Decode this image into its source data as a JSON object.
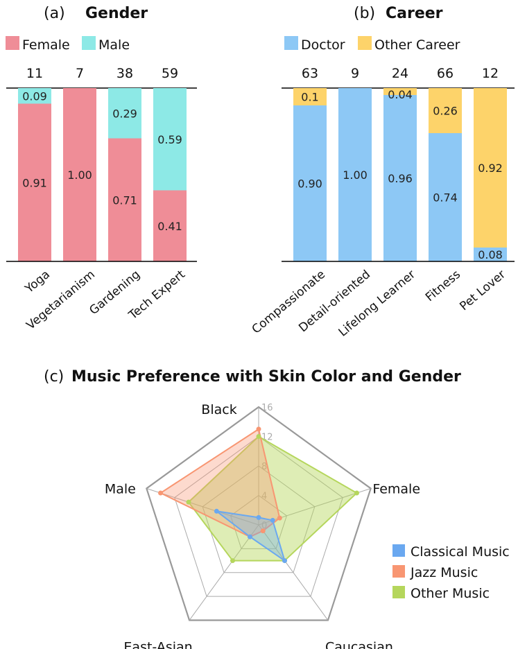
{
  "colors": {
    "female": "#ef8d97",
    "male": "#8de9e6",
    "doctor": "#8dc8f5",
    "other_career": "#fdd36a",
    "classical": "#6aa8f0",
    "jazz": "#f89672",
    "other_music": "#b5d65c",
    "grid": "#aaaaaa",
    "outer_grid": "#999999"
  },
  "chart_data": [
    {
      "type": "bar",
      "stacked": true,
      "panel": "(a)",
      "title": "Gender",
      "legend": [
        "Female",
        "Male"
      ],
      "categories": [
        "Yoga",
        "Vegetarianism",
        "Gardening",
        "Tech Expert"
      ],
      "counts": [
        "11",
        "7",
        "38",
        "59"
      ],
      "series": [
        {
          "name": "Female",
          "values": [
            0.91,
            1.0,
            0.71,
            0.41
          ],
          "labels": [
            "0.91",
            "1.00",
            "0.71",
            "0.41"
          ]
        },
        {
          "name": "Male",
          "values": [
            0.09,
            0.0,
            0.29,
            0.59
          ],
          "labels": [
            "0.09",
            "",
            "0.29",
            "0.59"
          ]
        }
      ],
      "ylim": [
        0,
        1
      ]
    },
    {
      "type": "bar",
      "stacked": true,
      "panel": "(b)",
      "title": "Career",
      "legend": [
        "Doctor",
        "Other Career"
      ],
      "categories": [
        "Compassionate",
        "Detail-oriented",
        "Lifelong Learner",
        "Fitness",
        "Pet Lover"
      ],
      "counts": [
        "63",
        "9",
        "24",
        "66",
        "12"
      ],
      "series": [
        {
          "name": "Doctor",
          "values": [
            0.9,
            1.0,
            0.96,
            0.74,
            0.08
          ],
          "labels": [
            "0.90",
            "1.00",
            "0.96",
            "0.74",
            "0.08"
          ]
        },
        {
          "name": "Other Career",
          "values": [
            0.1,
            0.0,
            0.04,
            0.26,
            0.92
          ],
          "labels": [
            "0.1",
            "",
            "0.04",
            "0.26",
            "0.92"
          ]
        }
      ],
      "ylim": [
        0,
        1
      ]
    },
    {
      "type": "radar",
      "panel": "(c)",
      "title": "Music Preference with Skin Color and Gender",
      "axes": [
        "Black",
        "Female",
        "Caucasian",
        "East-Asian",
        "Male"
      ],
      "ticks": [
        "0",
        "4",
        "8",
        "12",
        "16"
      ],
      "rmax": 16,
      "legend_position": "right",
      "series": [
        {
          "name": "Classical Music",
          "values": [
            1,
            2,
            6,
            2,
            6
          ]
        },
        {
          "name": "Jazz Music",
          "values": [
            13,
            3,
            1,
            2,
            14
          ]
        },
        {
          "name": "Other Music",
          "values": [
            12,
            14,
            6,
            6,
            10
          ]
        }
      ]
    }
  ]
}
